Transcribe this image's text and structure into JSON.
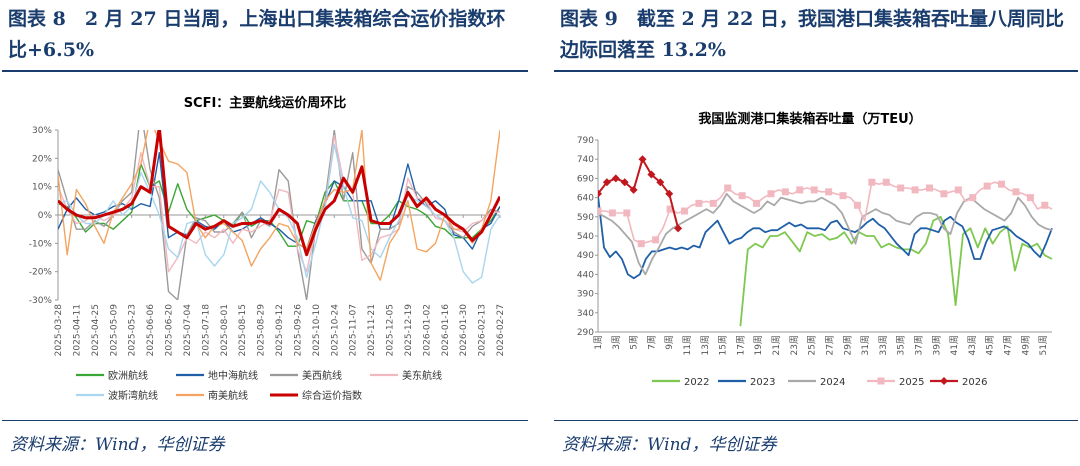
{
  "left_panel": {
    "caption": "图表 8　2 月 27 日当周，上海出口集装箱综合运价指数环比+6.5%",
    "source": "资料来源：Wind，华创证券"
  },
  "right_panel": {
    "caption": "图表 9　截至 2 月 22 日，我国港口集装箱吞吐量八周同比边际回落至 13.2%",
    "source": "资料来源：Wind，华创证券"
  },
  "chart_data": [
    {
      "type": "line",
      "title": "SCFI：主要航线运价周环比",
      "ylim": [
        -30,
        30
      ],
      "yticks": [
        "30%",
        "20%",
        "10%",
        "0%",
        "-10%",
        "-20%",
        "-30%"
      ],
      "x_tick_labels": [
        "2025-03-28",
        "2025-04-11",
        "2025-04-25",
        "2025-05-09",
        "2025-05-23",
        "2025-06-06",
        "2025-06-20",
        "2025-07-04",
        "2025-07-18",
        "2025-08-01",
        "2025-08-15",
        "2025-08-29",
        "2025-09-12",
        "2025-09-26",
        "2025-10-10",
        "2025-10-24",
        "2025-11-07",
        "2025-11-21",
        "2025-12-05",
        "2025-12-19",
        "2026-01-02",
        "2026-01-16",
        "2026-01-30",
        "2026-02-13",
        "2026-02-27"
      ],
      "series": [
        {
          "name": "欧洲航线",
          "color": "#3aa635",
          "width": 1.4,
          "values": [
            4,
            3,
            -1,
            -6,
            -3,
            -3,
            -5,
            -2,
            1,
            18,
            10,
            12,
            1,
            11,
            2,
            -2,
            -1,
            0,
            -2,
            -4,
            1,
            -4,
            -2,
            -2,
            -6,
            -11,
            -11,
            -2,
            -3,
            8,
            12,
            5,
            5,
            5,
            -3,
            -3,
            0,
            5,
            3,
            2,
            0,
            -4,
            -5,
            -8,
            -8,
            -8,
            -5,
            -2,
            3
          ]
        },
        {
          "name": "地中海航线",
          "color": "#1f5fa8",
          "width": 1.4,
          "values": [
            -5,
            2,
            6,
            2,
            0,
            1,
            3,
            4,
            2,
            4,
            3,
            22,
            -8,
            -6,
            -7,
            -2,
            -4,
            -5,
            -2,
            -6,
            -5,
            -3,
            -1,
            -3,
            -5,
            -8,
            -10,
            -12,
            -2,
            4,
            12,
            10,
            5,
            5,
            5,
            -5,
            -5,
            5,
            18,
            6,
            3,
            5,
            2,
            -7,
            -8,
            -12,
            -5,
            -3,
            3
          ]
        },
        {
          "name": "美西航线",
          "color": "#9a9a9a",
          "width": 1.4,
          "values": [
            16,
            5,
            -5,
            -5,
            -2,
            -4,
            0,
            5,
            8,
            37,
            16,
            6,
            -27,
            -30,
            -7,
            -1,
            -2,
            -6,
            -6,
            -3,
            1,
            -8,
            -2,
            -4,
            16,
            12,
            -12,
            -30,
            -4,
            5,
            30,
            5,
            22,
            -12,
            -17,
            -5,
            -5,
            -3,
            10,
            8,
            4,
            -1,
            -2,
            -6,
            -8,
            -4,
            -2,
            2,
            1
          ]
        },
        {
          "name": "美东航线",
          "color": "#f2b8c0",
          "width": 1.4,
          "values": [
            10,
            2,
            -3,
            -2,
            0,
            -2,
            0,
            2,
            6,
            22,
            10,
            10,
            -20,
            -15,
            -8,
            -10,
            -6,
            -8,
            -5,
            -10,
            -5,
            -6,
            -4,
            -2,
            9,
            8,
            -12,
            -20,
            -5,
            2,
            28,
            12,
            8,
            -16,
            -14,
            -8,
            -7,
            -5,
            13,
            6,
            5,
            -1,
            -2,
            -5,
            -6,
            -3,
            -2,
            1,
            1
          ]
        },
        {
          "name": "波斯湾航线",
          "color": "#a9d5ee",
          "width": 1.4,
          "values": [
            4,
            5,
            0,
            -3,
            -3,
            0,
            5,
            0,
            3,
            15,
            8,
            0,
            -12,
            -15,
            -3,
            -2,
            -14,
            -18,
            -14,
            -3,
            -1,
            2,
            12,
            8,
            2,
            -1,
            -8,
            -22,
            -10,
            3,
            25,
            10,
            -1,
            -2,
            -12,
            -15,
            -8,
            -2,
            7,
            5,
            3,
            0,
            -2,
            -8,
            -20,
            -24,
            -22,
            -5,
            0
          ]
        },
        {
          "name": "南美航线",
          "color": "#f4a460",
          "width": 1.4,
          "values": [
            14,
            -14,
            9,
            4,
            -4,
            -10,
            1,
            6,
            11,
            18,
            34,
            26,
            19,
            18,
            15,
            -3,
            -8,
            -4,
            -3,
            -6,
            -9,
            -18,
            -12,
            -8,
            -3,
            -4,
            -10,
            -12,
            -3,
            5,
            9,
            8,
            9,
            30,
            -17,
            -23,
            -10,
            -5,
            5,
            -12,
            -13,
            -10,
            0,
            -5,
            -5,
            -10,
            -5,
            5,
            30
          ]
        },
        {
          "name": "综合运价指数",
          "color": "#c80000",
          "width": 3,
          "values": [
            5,
            2,
            0,
            -1,
            -1,
            0,
            1,
            2,
            4,
            10,
            8,
            31,
            -4,
            -6,
            -8,
            -3,
            -5,
            -4,
            -2,
            -4,
            -3,
            -3,
            -2,
            -3,
            2,
            0,
            -3,
            -14,
            -5,
            2,
            5,
            13,
            8,
            17,
            -2,
            -3,
            -3,
            0,
            8,
            3,
            6,
            2,
            0,
            -3,
            -5,
            -9,
            -6,
            0,
            6.5
          ]
        }
      ]
    },
    {
      "type": "line",
      "title": "我国监测港口集装箱吞吐量（万TEU）",
      "ylim": [
        290,
        790
      ],
      "yticks": [
        "790",
        "740",
        "690",
        "640",
        "590",
        "540",
        "490",
        "440",
        "390",
        "340",
        "290"
      ],
      "x_tick_labels": [
        "1周",
        "3周",
        "5周",
        "7周",
        "9周",
        "11周",
        "13周",
        "15周",
        "17周",
        "19周",
        "21周",
        "23周",
        "25周",
        "27周",
        "29周",
        "31周",
        "33周",
        "35周",
        "37周",
        "39周",
        "41周",
        "43周",
        "45周",
        "47周",
        "49周",
        "51周"
      ],
      "series": [
        {
          "name": "2022",
          "color": "#7ec850",
          "width": 1.8,
          "start_week": 17,
          "values": [
            305,
            505,
            520,
            510,
            540,
            540,
            550,
            525,
            500,
            550,
            540,
            545,
            530,
            535,
            550,
            520,
            550,
            540,
            540,
            510,
            520,
            510,
            505,
            505,
            495,
            520,
            580,
            590,
            545,
            360,
            545,
            560,
            510,
            560,
            520,
            550,
            565,
            450,
            520,
            510,
            520,
            490,
            480
          ]
        },
        {
          "name": "2023",
          "color": "#1f5fa8",
          "width": 1.8,
          "start_week": 1,
          "values": [
            645,
            510,
            485,
            500,
            480,
            440,
            430,
            440,
            480,
            500,
            500,
            505,
            510,
            505,
            510,
            505,
            515,
            510,
            550,
            565,
            580,
            550,
            520,
            530,
            535,
            550,
            560,
            560,
            550,
            555,
            555,
            565,
            575,
            565,
            570,
            560,
            560,
            560,
            555,
            575,
            580,
            560,
            555,
            550,
            560,
            575,
            585,
            570,
            560,
            540,
            520,
            505,
            490,
            545,
            560,
            560,
            555,
            550,
            580,
            590,
            575,
            565,
            530,
            480,
            480,
            525,
            555,
            560,
            565,
            555,
            540,
            530,
            520,
            500,
            485,
            520,
            560
          ]
        },
        {
          "name": "2024",
          "color": "#a9a9a9",
          "width": 1.8,
          "start_week": 1,
          "values": [
            600,
            590,
            580,
            565,
            545,
            525,
            470,
            440,
            480,
            510,
            545,
            560,
            570,
            580,
            590,
            600,
            610,
            600,
            620,
            650,
            630,
            620,
            610,
            600,
            610,
            630,
            620,
            640,
            635,
            630,
            625,
            630,
            630,
            640,
            630,
            620,
            600,
            560,
            520,
            590,
            600,
            610,
            600,
            595,
            580,
            575,
            570,
            590,
            600,
            600,
            595,
            560,
            545,
            600,
            630,
            640,
            625,
            610,
            600,
            590,
            580,
            600,
            640,
            620,
            590,
            570,
            560,
            555
          ]
        },
        {
          "name": "2025",
          "color": "#f2b8c0",
          "width": 1.6,
          "marker": "square",
          "start_week": 1,
          "values": [
            605,
            605,
            600,
            600,
            600,
            530,
            520,
            525,
            530,
            560,
            610,
            600,
            605,
            620,
            625,
            630,
            625,
            640,
            665,
            650,
            645,
            640,
            625,
            640,
            650,
            660,
            655,
            650,
            660,
            665,
            660,
            655,
            655,
            650,
            645,
            640,
            620,
            580,
            680,
            675,
            680,
            670,
            665,
            665,
            660,
            660,
            665,
            660,
            650,
            655,
            660,
            630,
            640,
            660,
            670,
            680,
            675,
            660,
            655,
            650,
            640,
            610,
            620,
            610
          ]
        },
        {
          "name": "2026",
          "color": "#c0181e",
          "width": 2,
          "marker": "diamond",
          "start_week": 1,
          "values": [
            650,
            680,
            690,
            680,
            660,
            740,
            700,
            680,
            650,
            560
          ]
        }
      ],
      "x_span_weeks": 52
    }
  ]
}
